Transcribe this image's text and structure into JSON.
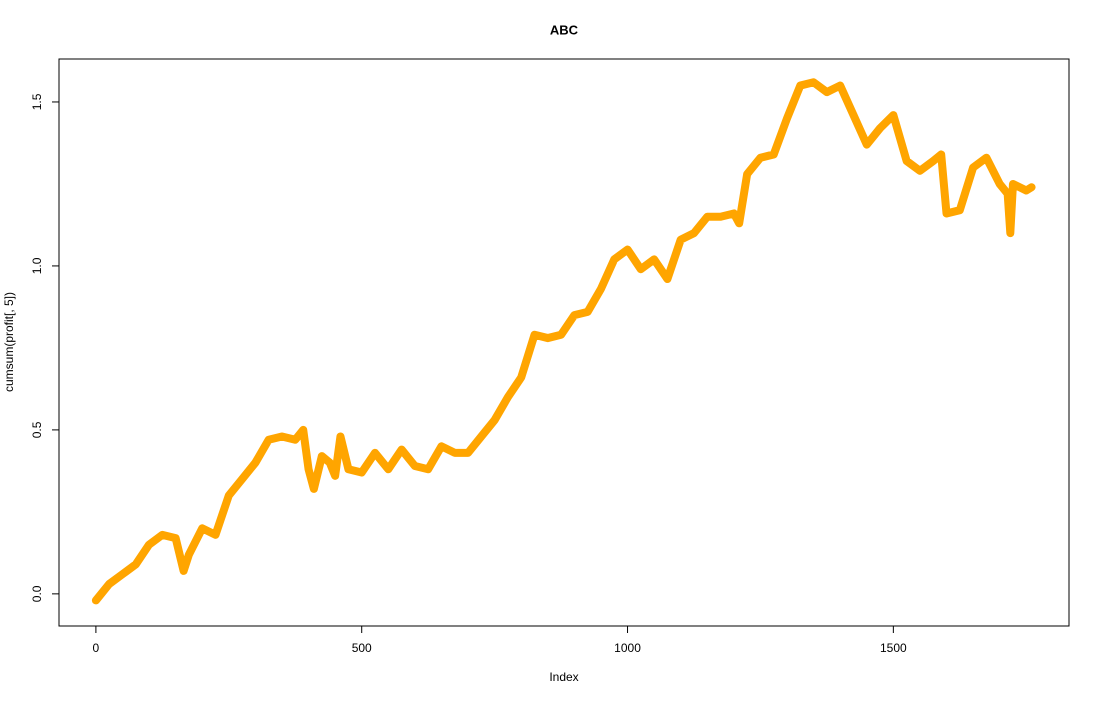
{
  "chart_data": {
    "type": "line",
    "title": "ABC",
    "x_label": "Index",
    "y_label": "cumsum(profit[, 5])",
    "x": [
      0,
      25,
      50,
      75,
      100,
      125,
      150,
      165,
      175,
      200,
      225,
      250,
      275,
      300,
      325,
      350,
      375,
      390,
      400,
      410,
      425,
      440,
      450,
      460,
      475,
      500,
      525,
      550,
      575,
      600,
      625,
      650,
      675,
      700,
      725,
      750,
      775,
      800,
      825,
      850,
      875,
      900,
      925,
      950,
      975,
      1000,
      1025,
      1050,
      1075,
      1100,
      1125,
      1150,
      1175,
      1200,
      1210,
      1225,
      1250,
      1275,
      1300,
      1325,
      1350,
      1375,
      1400,
      1425,
      1450,
      1475,
      1500,
      1525,
      1550,
      1575,
      1590,
      1600,
      1625,
      1650,
      1675,
      1700,
      1715,
      1720,
      1725,
      1750,
      1760
    ],
    "series": [
      {
        "color": "#ffa500",
        "values": [
          -0.02,
          0.03,
          0.06,
          0.09,
          0.15,
          0.18,
          0.17,
          0.07,
          0.12,
          0.2,
          0.18,
          0.3,
          0.35,
          0.4,
          0.47,
          0.48,
          0.47,
          0.5,
          0.38,
          0.32,
          0.42,
          0.4,
          0.36,
          0.48,
          0.38,
          0.37,
          0.43,
          0.38,
          0.44,
          0.39,
          0.38,
          0.45,
          0.43,
          0.43,
          0.48,
          0.53,
          0.6,
          0.66,
          0.79,
          0.78,
          0.79,
          0.85,
          0.86,
          0.93,
          1.02,
          1.05,
          0.99,
          1.02,
          0.96,
          1.08,
          1.1,
          1.15,
          1.15,
          1.16,
          1.13,
          1.28,
          1.33,
          1.34,
          1.45,
          1.55,
          1.56,
          1.53,
          1.55,
          1.46,
          1.37,
          1.42,
          1.46,
          1.32,
          1.29,
          1.32,
          1.34,
          1.16,
          1.17,
          1.3,
          1.33,
          1.25,
          1.22,
          1.1,
          1.25,
          1.23,
          1.24
        ]
      }
    ],
    "xlim": [
      -69.4,
      1830.4
    ],
    "xticks": [
      0,
      500,
      1000,
      1500
    ],
    "ylim": [
      -0.098,
      1.631
    ],
    "yticks": [
      {
        "value": 0,
        "label": "0.0"
      },
      {
        "value": 0.5,
        "label": "0.5"
      },
      {
        "value": 1,
        "label": "1.0"
      },
      {
        "value": 1.5,
        "label": "1.5"
      }
    ]
  }
}
